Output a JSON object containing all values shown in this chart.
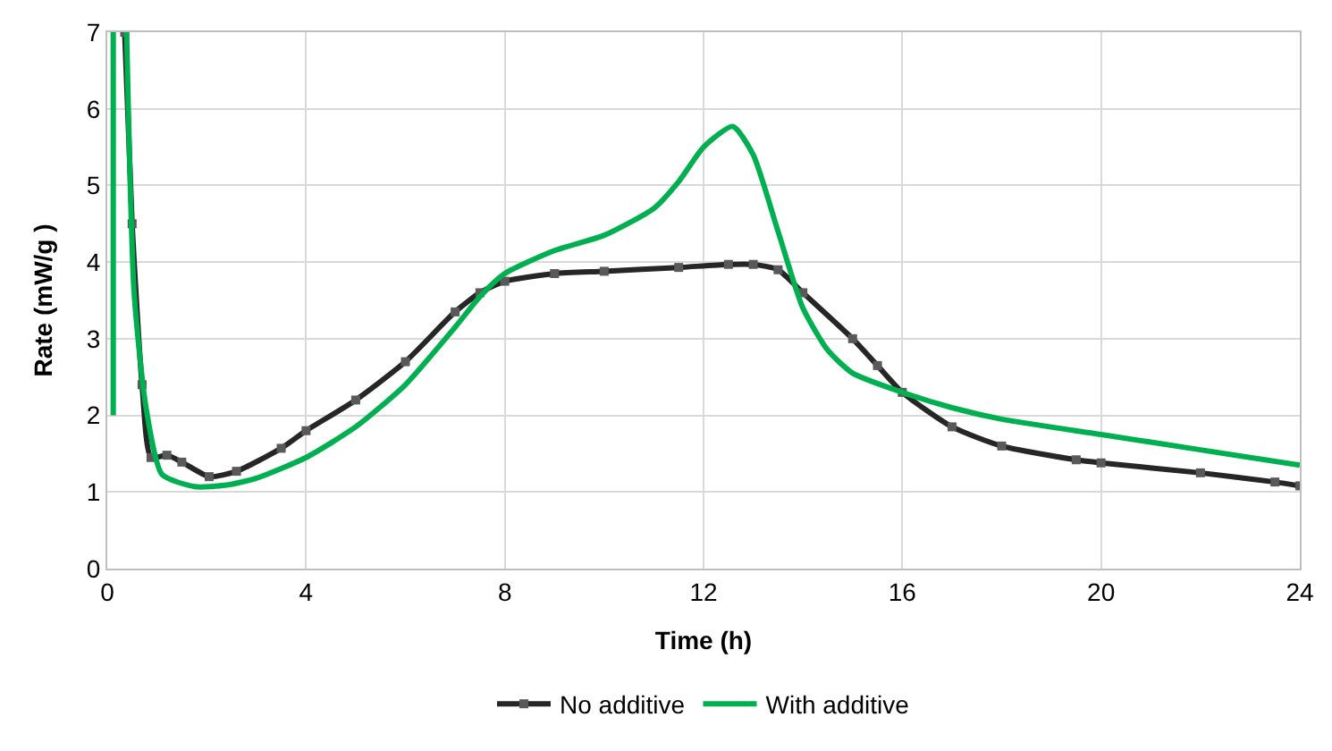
{
  "chart_data": {
    "type": "line",
    "xlabel": "Time (h)",
    "ylabel": "Rate (mW/g )",
    "xlim": [
      0,
      24
    ],
    "xticks": [
      0,
      4,
      8,
      12,
      16,
      20,
      24
    ],
    "ylim": [
      0,
      7
    ],
    "yticks": [
      0,
      1,
      2,
      3,
      4,
      5,
      6,
      7
    ],
    "grid": true,
    "legend": "bottom",
    "line_style": "solid",
    "series": [
      {
        "name": "No additive",
        "color": "#262626",
        "marker": "square",
        "x": [
          0.35,
          0.5,
          0.7,
          0.88,
          1.2,
          1.5,
          2.05,
          2.6,
          3.5,
          4,
          5,
          6,
          7,
          7.5,
          8,
          9,
          10,
          11.5,
          12.5,
          13,
          13.5,
          14,
          15,
          15.5,
          16,
          17,
          18,
          19.5,
          20,
          22,
          23.5,
          24
        ],
        "values": [
          7,
          4.5,
          2.4,
          1.45,
          1.48,
          1.39,
          1.2,
          1.27,
          1.57,
          1.8,
          2.2,
          2.7,
          3.35,
          3.6,
          3.75,
          3.85,
          3.88,
          3.93,
          3.97,
          3.97,
          3.9,
          3.6,
          3.0,
          2.65,
          2.3,
          1.85,
          1.6,
          1.42,
          1.38,
          1.25,
          1.13,
          1.08
        ]
      },
      {
        "name": "With additive",
        "color": "#00b050",
        "marker": "none",
        "x": [
          0.12,
          0.12,
          0.25,
          0.39,
          0.54,
          0.78,
          1.1,
          1.76,
          2.4,
          3,
          4,
          5,
          6,
          7,
          7.5,
          8,
          9,
          10,
          11,
          11.5,
          12,
          12.59,
          13,
          13.5,
          14,
          14.5,
          15,
          16,
          17,
          18,
          20,
          22,
          24
        ],
        "values": [
          2,
          7,
          null,
          7,
          3.6,
          2.1,
          1.23,
          1.07,
          1.09,
          1.18,
          1.45,
          1.85,
          2.4,
          3.15,
          3.55,
          3.85,
          4.15,
          4.35,
          4.7,
          5.05,
          5.5,
          5.77,
          5.4,
          4.4,
          3.4,
          2.85,
          2.55,
          2.3,
          2.1,
          1.95,
          1.75,
          1.55,
          1.35
        ]
      }
    ]
  }
}
